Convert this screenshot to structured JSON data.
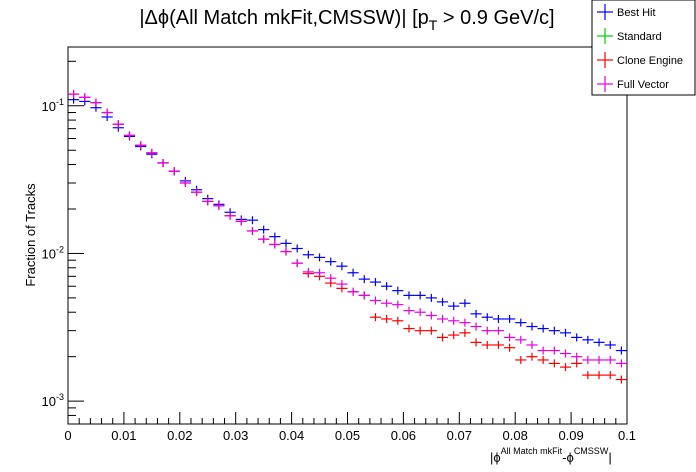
{
  "chart_data": {
    "type": "scatter",
    "title": {
      "prefix": "|Δϕ(All Match mkFit,CMSSW)| [p",
      "sub": "T",
      "suffix": " > 0.9 GeV/c]"
    },
    "ylabel": "Fraction of Tracks",
    "xlabel": {
      "open": "|ϕ",
      "sup1": "All Match mkFit",
      "mid": "-ϕ",
      "sup2": "CMSSW",
      "close": "|"
    },
    "xlim": [
      0,
      0.1
    ],
    "ylim": [
      0.0007,
      0.25
    ],
    "yscale": "log",
    "x_ticks": [
      "0",
      "0.01",
      "0.02",
      "0.03",
      "0.04",
      "0.05",
      "0.06",
      "0.07",
      "0.08",
      "0.09",
      "0.1"
    ],
    "y_ticks": [
      {
        "base": "10",
        "exp": "-1",
        "value": 0.1
      },
      {
        "base": "10",
        "exp": "-2",
        "value": 0.01
      },
      {
        "base": "10",
        "exp": "-3",
        "value": 0.001
      }
    ],
    "bin_width": 0.002,
    "legend_position": "top-right",
    "series": [
      {
        "name": "Best Hit",
        "color": "#0000ff",
        "x": [
          0.001,
          0.003,
          0.005,
          0.007,
          0.009,
          0.011,
          0.013,
          0.015,
          0.017,
          0.019,
          0.021,
          0.023,
          0.025,
          0.027,
          0.029,
          0.031,
          0.033,
          0.035,
          0.037,
          0.039,
          0.041,
          0.043,
          0.045,
          0.047,
          0.049,
          0.051,
          0.053,
          0.055,
          0.057,
          0.059,
          0.061,
          0.063,
          0.065,
          0.067,
          0.069,
          0.071,
          0.073,
          0.075,
          0.077,
          0.079,
          0.081,
          0.083,
          0.085,
          0.087,
          0.089,
          0.091,
          0.093,
          0.095,
          0.097,
          0.099
        ],
        "y": [
          0.11,
          0.107,
          0.097,
          0.084,
          0.071,
          0.062,
          0.053,
          0.047,
          0.041,
          0.036,
          0.031,
          0.027,
          0.0235,
          0.0215,
          0.019,
          0.017,
          0.0168,
          0.0145,
          0.013,
          0.0117,
          0.0108,
          0.0098,
          0.0094,
          0.0088,
          0.0082,
          0.0074,
          0.0067,
          0.0064,
          0.006,
          0.0056,
          0.0052,
          0.0052,
          0.005,
          0.0047,
          0.0044,
          0.0046,
          0.0039,
          0.0037,
          0.0036,
          0.0036,
          0.0034,
          0.0032,
          0.0031,
          0.003,
          0.0029,
          0.0027,
          0.0026,
          0.0025,
          0.0024,
          0.0022
        ]
      },
      {
        "name": "Standard",
        "color": "#00cc00",
        "x": [],
        "y": []
      },
      {
        "name": "Clone Engine",
        "color": "#ff0000",
        "x": [
          0.001,
          0.003,
          0.005,
          0.007,
          0.009,
          0.011,
          0.013,
          0.015,
          0.017,
          0.019,
          0.021,
          0.023,
          0.025,
          0.027,
          0.029,
          0.031,
          0.033,
          0.035,
          0.037,
          0.039,
          0.041,
          0.043,
          0.045,
          0.047,
          0.049,
          0.051,
          0.053,
          0.055,
          0.057,
          0.059,
          0.061,
          0.063,
          0.065,
          0.067,
          0.069,
          0.071,
          0.073,
          0.075,
          0.077,
          0.079,
          0.081,
          0.083,
          0.085,
          0.087,
          0.089,
          0.091,
          0.093,
          0.095,
          0.097,
          0.099
        ],
        "y": [
          0.12,
          0.114,
          0.105,
          0.09,
          0.075,
          0.063,
          0.054,
          0.048,
          0.041,
          0.036,
          0.03,
          0.026,
          0.0225,
          0.021,
          0.018,
          0.0165,
          0.0142,
          0.0125,
          0.0115,
          0.0103,
          0.0086,
          0.0073,
          0.007,
          0.0063,
          0.0058,
          0.0055,
          0.0052,
          0.0037,
          0.0036,
          0.0035,
          0.0031,
          0.003,
          0.003,
          0.0027,
          0.0028,
          0.0029,
          0.0025,
          0.0024,
          0.0024,
          0.0023,
          0.0019,
          0.002,
          0.0019,
          0.0018,
          0.0017,
          0.0018,
          0.0015,
          0.0015,
          0.0015,
          0.0014
        ]
      },
      {
        "name": "Full Vector",
        "color": "#e600e6",
        "x": [
          0.001,
          0.003,
          0.005,
          0.007,
          0.009,
          0.011,
          0.013,
          0.015,
          0.017,
          0.019,
          0.021,
          0.023,
          0.025,
          0.027,
          0.029,
          0.031,
          0.033,
          0.035,
          0.037,
          0.039,
          0.041,
          0.043,
          0.045,
          0.047,
          0.049,
          0.051,
          0.053,
          0.055,
          0.057,
          0.059,
          0.061,
          0.063,
          0.065,
          0.067,
          0.069,
          0.071,
          0.073,
          0.075,
          0.077,
          0.079,
          0.081,
          0.083,
          0.085,
          0.087,
          0.089,
          0.091,
          0.093,
          0.095,
          0.097,
          0.099
        ],
        "y": [
          0.12,
          0.114,
          0.105,
          0.09,
          0.075,
          0.063,
          0.054,
          0.048,
          0.041,
          0.036,
          0.03,
          0.026,
          0.0225,
          0.021,
          0.018,
          0.0165,
          0.0142,
          0.0125,
          0.0115,
          0.0103,
          0.0086,
          0.0075,
          0.0074,
          0.0068,
          0.0062,
          0.0055,
          0.0052,
          0.0048,
          0.0046,
          0.0045,
          0.0041,
          0.004,
          0.0038,
          0.0036,
          0.0035,
          0.0034,
          0.0032,
          0.003,
          0.003,
          0.0027,
          0.0026,
          0.0024,
          0.0022,
          0.0022,
          0.0021,
          0.002,
          0.0019,
          0.0019,
          0.0019,
          0.0018
        ]
      }
    ]
  }
}
